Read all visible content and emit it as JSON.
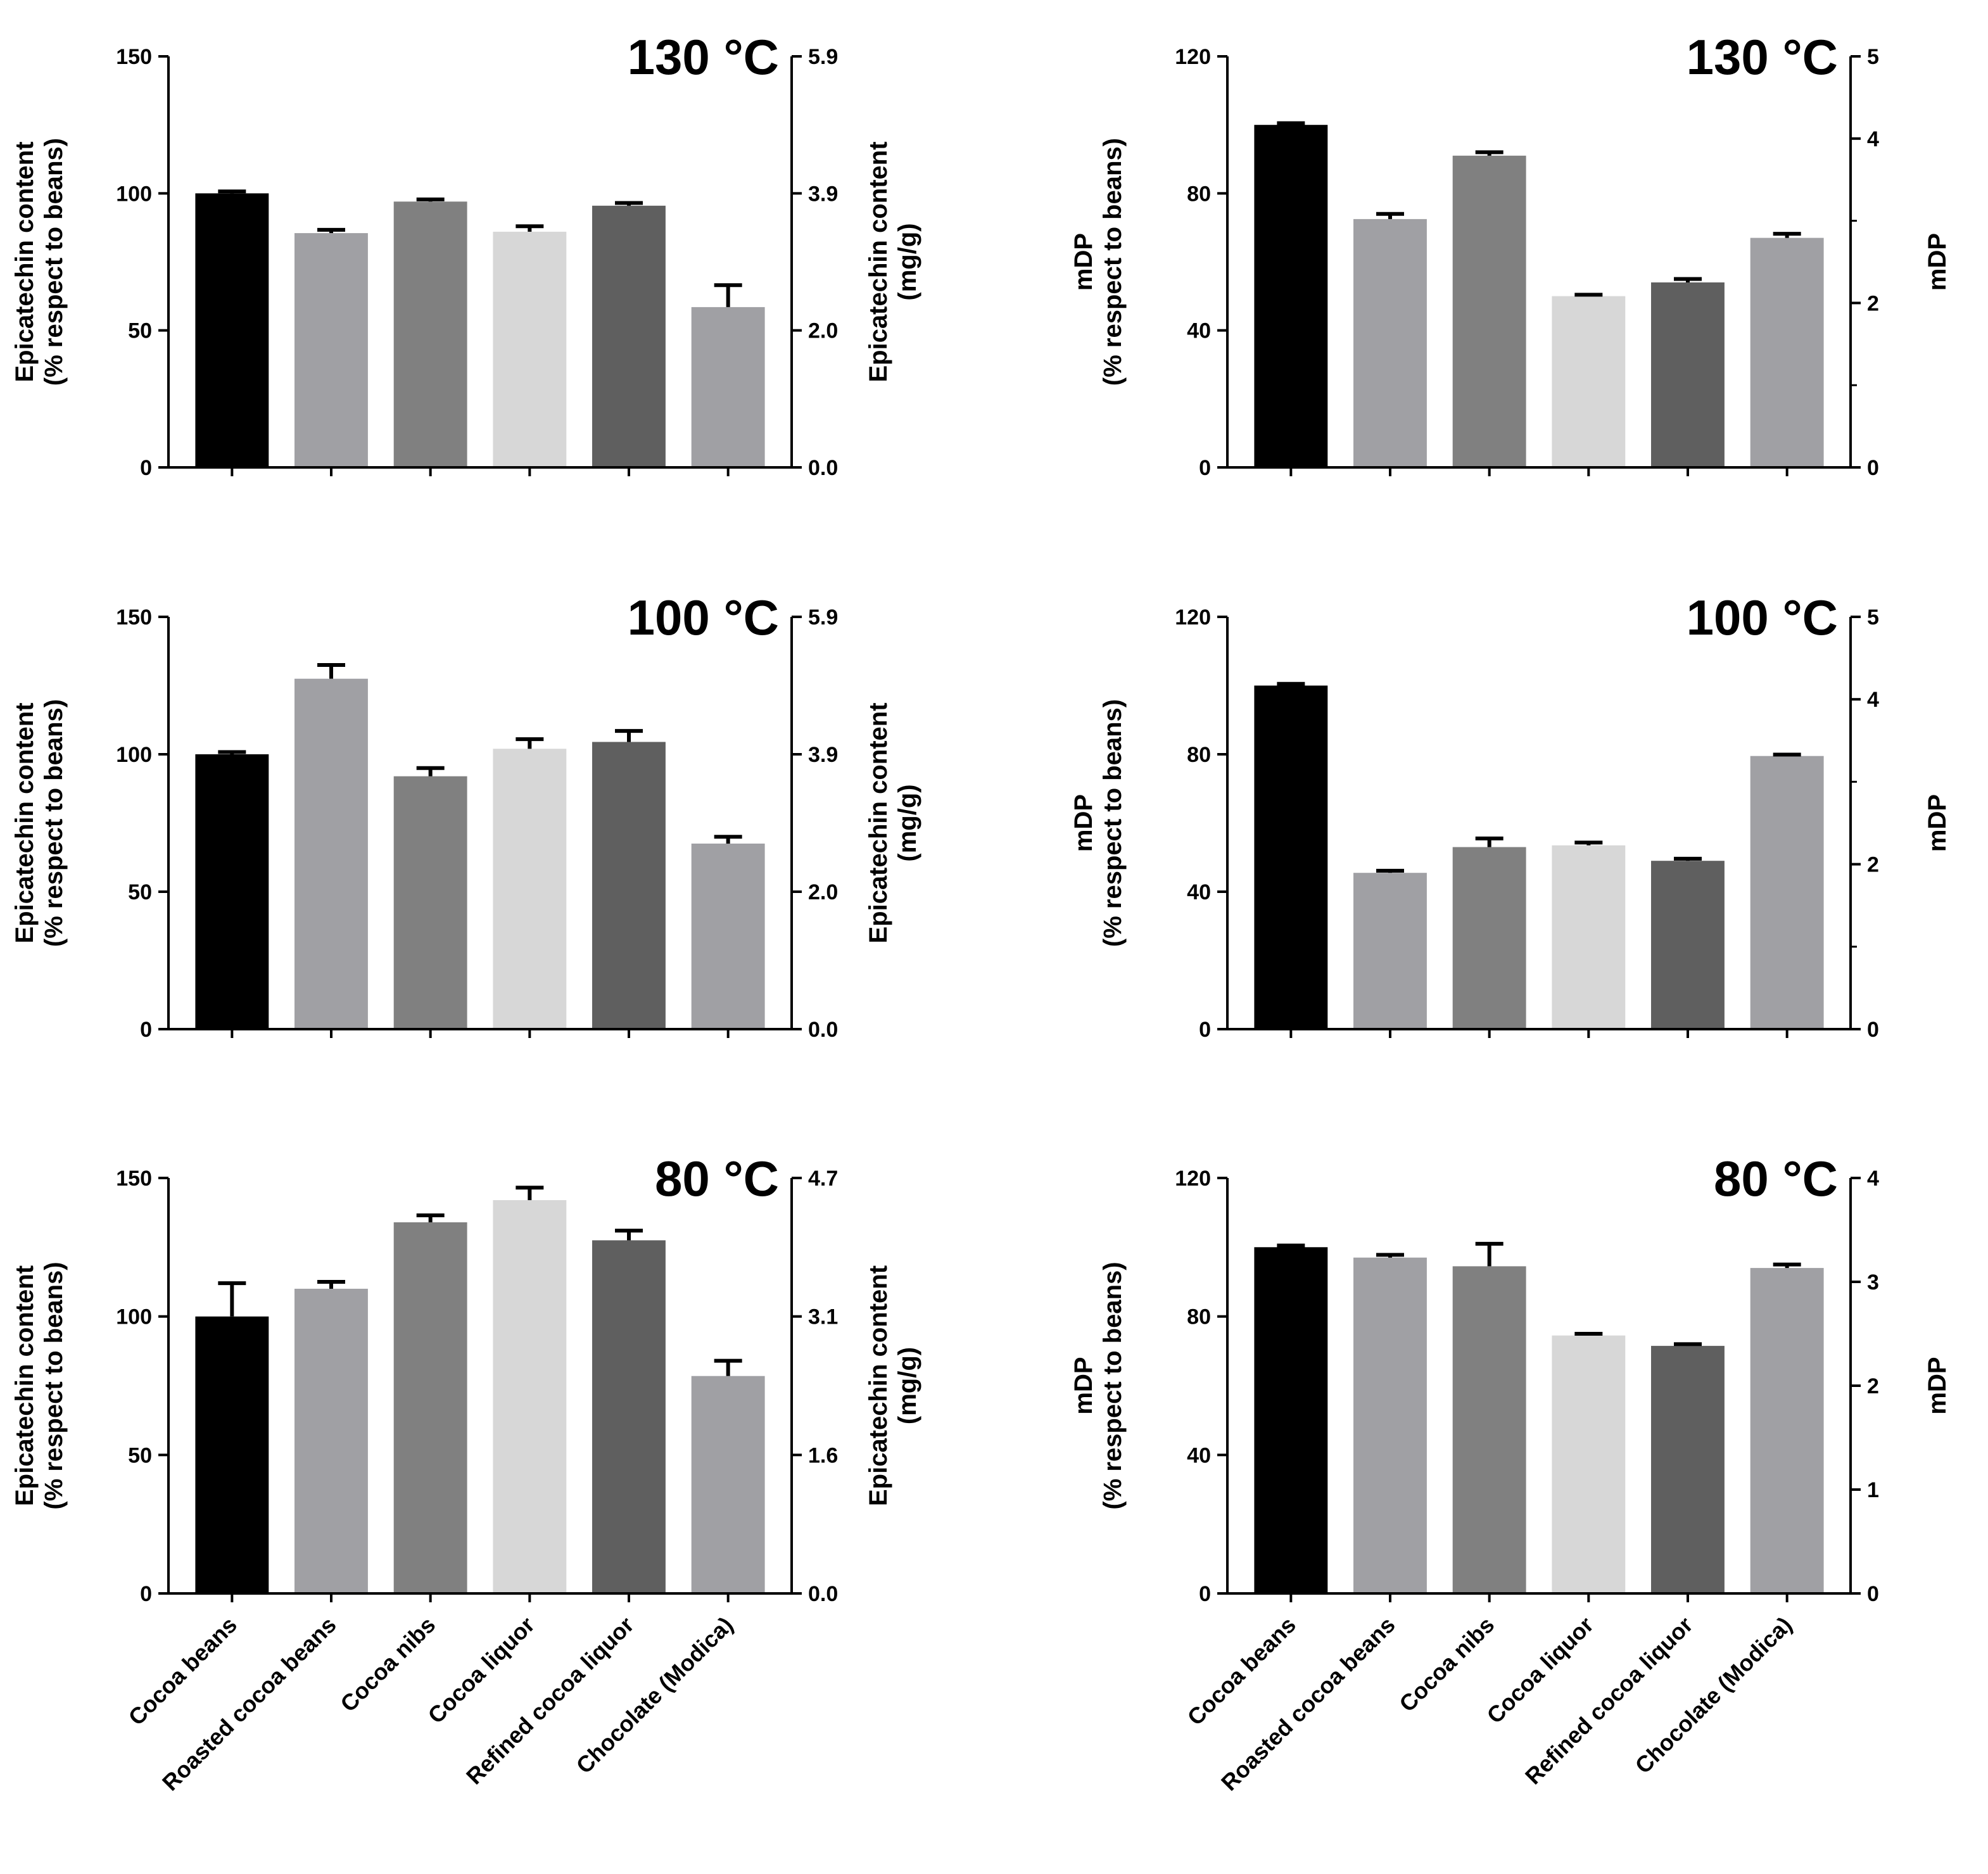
{
  "chart_data": [
    {
      "type": "bar",
      "panel": "epicatechin-130",
      "title": "130 °C",
      "categories": [
        "Cocoa beans",
        "Roasted cocoa beans",
        "Cocoa nibs",
        "Cocoa liquor",
        "Refined cocoa liquor",
        "Chocolate (Modica)"
      ],
      "values": [
        100,
        85.5,
        97,
        86,
        95.5,
        58.5
      ],
      "errors": [
        0.7,
        1.2,
        0.8,
        2,
        1,
        8
      ],
      "colors": [
        "#000000",
        "#a0a0a4",
        "#808080",
        "#d7d7d7",
        "#5f5f5f",
        "#a0a0a4"
      ],
      "ylabel": [
        "Epicatechin content",
        "(% respect to beans)"
      ],
      "ylim": [
        0,
        150
      ],
      "yticks": [
        "0",
        "50",
        "100",
        "150"
      ],
      "y2label": [
        "Epicatechin content",
        "(mg/g)"
      ],
      "y2ticks": [
        "0.0",
        "2.0",
        "3.9",
        "5.9"
      ],
      "show_xlabels": false
    },
    {
      "type": "bar",
      "panel": "mdp-130",
      "title": "130 °C",
      "categories": [
        "Cocoa beans",
        "Roasted cocoa beans",
        "Cocoa nibs",
        "Cocoa liquor",
        "Refined cocoa liquor",
        "Chocolate (Modica)"
      ],
      "values": [
        100,
        72.5,
        91,
        50,
        54,
        67
      ],
      "errors": [
        0.5,
        1.5,
        1,
        0.4,
        1,
        1.2
      ],
      "colors": [
        "#000000",
        "#a0a0a4",
        "#808080",
        "#d7d7d7",
        "#5f5f5f",
        "#a0a0a4"
      ],
      "ylabel": [
        "mDP",
        "(% respect to beans)"
      ],
      "ylim": [
        0,
        120
      ],
      "yticks": [
        "0",
        "40",
        "80",
        "120"
      ],
      "y2label": [
        "mDP"
      ],
      "y2ticks": [
        "0",
        "2",
        "4"
      ],
      "y2ticks_top": "5",
      "show_xlabels": false
    },
    {
      "type": "bar",
      "panel": "epicatechin-100",
      "title": "100 °C",
      "categories": [
        "Cocoa beans",
        "Roasted cocoa beans",
        "Cocoa nibs",
        "Cocoa liquor",
        "Refined cocoa liquor",
        "Chocolate (Modica)"
      ],
      "values": [
        100,
        127.5,
        92,
        102,
        104.5,
        67.5
      ],
      "errors": [
        0.8,
        5,
        3,
        3.5,
        4,
        2.5
      ],
      "colors": [
        "#000000",
        "#a0a0a4",
        "#808080",
        "#d7d7d7",
        "#5f5f5f",
        "#a0a0a4"
      ],
      "ylabel": [
        "Epicatechin content",
        "(% respect to beans)"
      ],
      "ylim": [
        0,
        150
      ],
      "yticks": [
        "0",
        "50",
        "100",
        "150"
      ],
      "y2label": [
        "Epicatechin content",
        "(mg/g)"
      ],
      "y2ticks": [
        "0.0",
        "2.0",
        "3.9",
        "5.9"
      ],
      "show_xlabels": false
    },
    {
      "type": "bar",
      "panel": "mdp-100",
      "title": "100 °C",
      "categories": [
        "Cocoa beans",
        "Roasted cocoa beans",
        "Cocoa nibs",
        "Cocoa liquor",
        "Refined cocoa liquor",
        "Chocolate (Modica)"
      ],
      "values": [
        100,
        45.5,
        53,
        53.5,
        49,
        79.5
      ],
      "errors": [
        0.5,
        0.6,
        2.5,
        0.8,
        0.6,
        0.4
      ],
      "colors": [
        "#000000",
        "#a0a0a4",
        "#808080",
        "#d7d7d7",
        "#5f5f5f",
        "#a0a0a4"
      ],
      "ylabel": [
        "mDP",
        "(% respect to beans)"
      ],
      "ylim": [
        0,
        120
      ],
      "yticks": [
        "0",
        "40",
        "80",
        "120"
      ],
      "y2label": [
        "mDP"
      ],
      "y2ticks": [
        "0",
        "2",
        "4"
      ],
      "y2ticks_top": "5",
      "show_xlabels": false
    },
    {
      "type": "bar",
      "panel": "epicatechin-80",
      "title": "80 °C",
      "categories": [
        "Cocoa beans",
        "Roasted cocoa beans",
        "Cocoa nibs",
        "Cocoa liquor",
        "Refined cocoa liquor",
        "Chocolate (Modica)"
      ],
      "values": [
        100,
        110,
        134,
        142,
        127.5,
        78.5
      ],
      "errors": [
        12,
        2.5,
        2.5,
        4.5,
        3.5,
        5.5
      ],
      "colors": [
        "#000000",
        "#a0a0a4",
        "#808080",
        "#d7d7d7",
        "#5f5f5f",
        "#a0a0a4"
      ],
      "ylabel": [
        "Epicatechin content",
        "(% respect to beans)"
      ],
      "ylim": [
        0,
        150
      ],
      "yticks": [
        "0",
        "50",
        "100",
        "150"
      ],
      "y2label": [
        "Epicatechin content",
        "(mg/g)"
      ],
      "y2ticks": [
        "0.0",
        "1.6",
        "3.1",
        "4.7"
      ],
      "show_xlabels": true
    },
    {
      "type": "bar",
      "panel": "mdp-80",
      "title": "80 °C",
      "categories": [
        "Cocoa beans",
        "Roasted cocoa beans",
        "Cocoa nibs",
        "Cocoa liquor",
        "Refined cocoa liquor",
        "Chocolate (Modica)"
      ],
      "values": [
        100,
        97,
        94.5,
        74.5,
        71.5,
        94
      ],
      "errors": [
        0.5,
        0.8,
        6.5,
        0.5,
        0.5,
        1
      ],
      "colors": [
        "#000000",
        "#a0a0a4",
        "#808080",
        "#d7d7d7",
        "#5f5f5f",
        "#a0a0a4"
      ],
      "ylabel": [
        "mDP",
        "(% respect to beans)"
      ],
      "ylim": [
        0,
        120
      ],
      "yticks": [
        "0",
        "40",
        "80",
        "120"
      ],
      "y2label": [
        "mDP"
      ],
      "y2ticks": [
        "0",
        "1",
        "2",
        "3",
        "4"
      ],
      "show_xlabels": true
    }
  ]
}
